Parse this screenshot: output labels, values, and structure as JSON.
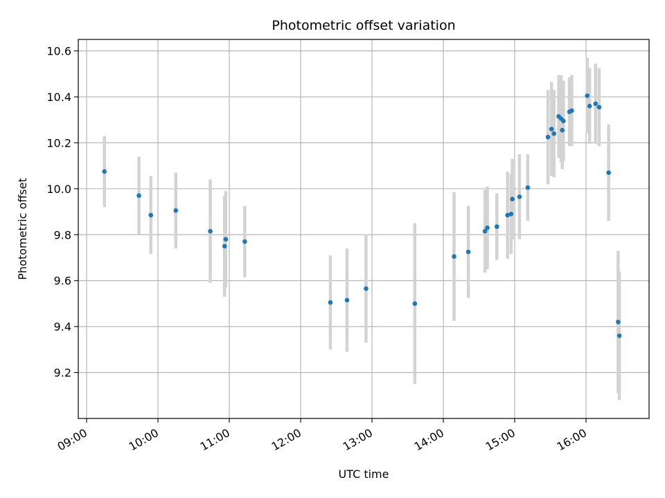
{
  "chart_data": {
    "type": "scatter",
    "title": "Photometric offset variation",
    "xlabel": "UTC time",
    "ylabel": "Photometric offset",
    "x_tick_labels": [
      "09:00",
      "10:00",
      "11:00",
      "12:00",
      "13:00",
      "14:00",
      "15:00",
      "16:00"
    ],
    "y_tick_labels": [
      "9.2",
      "9.4",
      "9.6",
      "9.8",
      "10.0",
      "10.2",
      "10.4",
      "10.6"
    ],
    "y_ticks": [
      9.2,
      9.4,
      9.6,
      9.8,
      10.0,
      10.2,
      10.4,
      10.6
    ],
    "xlim": [
      "08:53",
      "16:53"
    ],
    "ylim": [
      9.0,
      10.65
    ],
    "grid": true,
    "marker_color": "#1f77b4",
    "errorbar_color": "#d3d3d3",
    "points": [
      {
        "t": "09:15",
        "y": 10.075,
        "err": 0.155
      },
      {
        "t": "09:44",
        "y": 9.97,
        "err": 0.17
      },
      {
        "t": "09:54",
        "y": 9.885,
        "err": 0.17
      },
      {
        "t": "10:15",
        "y": 9.905,
        "err": 0.165
      },
      {
        "t": "10:44",
        "y": 9.815,
        "err": 0.225
      },
      {
        "t": "10:56",
        "y": 9.75,
        "err": 0.22
      },
      {
        "t": "10:57",
        "y": 9.78,
        "err": 0.21
      },
      {
        "t": "11:13",
        "y": 9.77,
        "err": 0.155
      },
      {
        "t": "12:25",
        "y": 9.505,
        "err": 0.205
      },
      {
        "t": "12:39",
        "y": 9.515,
        "err": 0.225
      },
      {
        "t": "12:55",
        "y": 9.565,
        "err": 0.235
      },
      {
        "t": "13:36",
        "y": 9.5,
        "err": 0.35
      },
      {
        "t": "14:09",
        "y": 9.705,
        "err": 0.28
      },
      {
        "t": "14:21",
        "y": 9.725,
        "err": 0.2
      },
      {
        "t": "14:35",
        "y": 9.815,
        "err": 0.18
      },
      {
        "t": "14:37",
        "y": 9.83,
        "err": 0.18
      },
      {
        "t": "14:45",
        "y": 9.835,
        "err": 0.145
      },
      {
        "t": "14:54",
        "y": 9.885,
        "err": 0.19
      },
      {
        "t": "14:57",
        "y": 9.89,
        "err": 0.175
      },
      {
        "t": "14:58",
        "y": 9.955,
        "err": 0.175
      },
      {
        "t": "15:04",
        "y": 9.965,
        "err": 0.185
      },
      {
        "t": "15:11",
        "y": 10.005,
        "err": 0.145
      },
      {
        "t": "15:28",
        "y": 10.225,
        "err": 0.205
      },
      {
        "t": "15:31",
        "y": 10.26,
        "err": 0.205
      },
      {
        "t": "15:33",
        "y": 10.24,
        "err": 0.19
      },
      {
        "t": "15:37",
        "y": 10.315,
        "err": 0.18
      },
      {
        "t": "15:39",
        "y": 10.305,
        "err": 0.19
      },
      {
        "t": "15:40",
        "y": 10.255,
        "err": 0.17
      },
      {
        "t": "15:41",
        "y": 10.295,
        "err": 0.175
      },
      {
        "t": "15:46",
        "y": 10.335,
        "err": 0.15
      },
      {
        "t": "15:48",
        "y": 10.34,
        "err": 0.155
      },
      {
        "t": "16:01",
        "y": 10.405,
        "err": 0.165
      },
      {
        "t": "16:03",
        "y": 10.36,
        "err": 0.165
      },
      {
        "t": "16:08",
        "y": 10.37,
        "err": 0.175
      },
      {
        "t": "16:11",
        "y": 10.355,
        "err": 0.17
      },
      {
        "t": "16:19",
        "y": 10.07,
        "err": 0.21
      },
      {
        "t": "16:27",
        "y": 9.42,
        "err": 0.31
      },
      {
        "t": "16:28",
        "y": 9.36,
        "err": 0.28
      }
    ]
  }
}
